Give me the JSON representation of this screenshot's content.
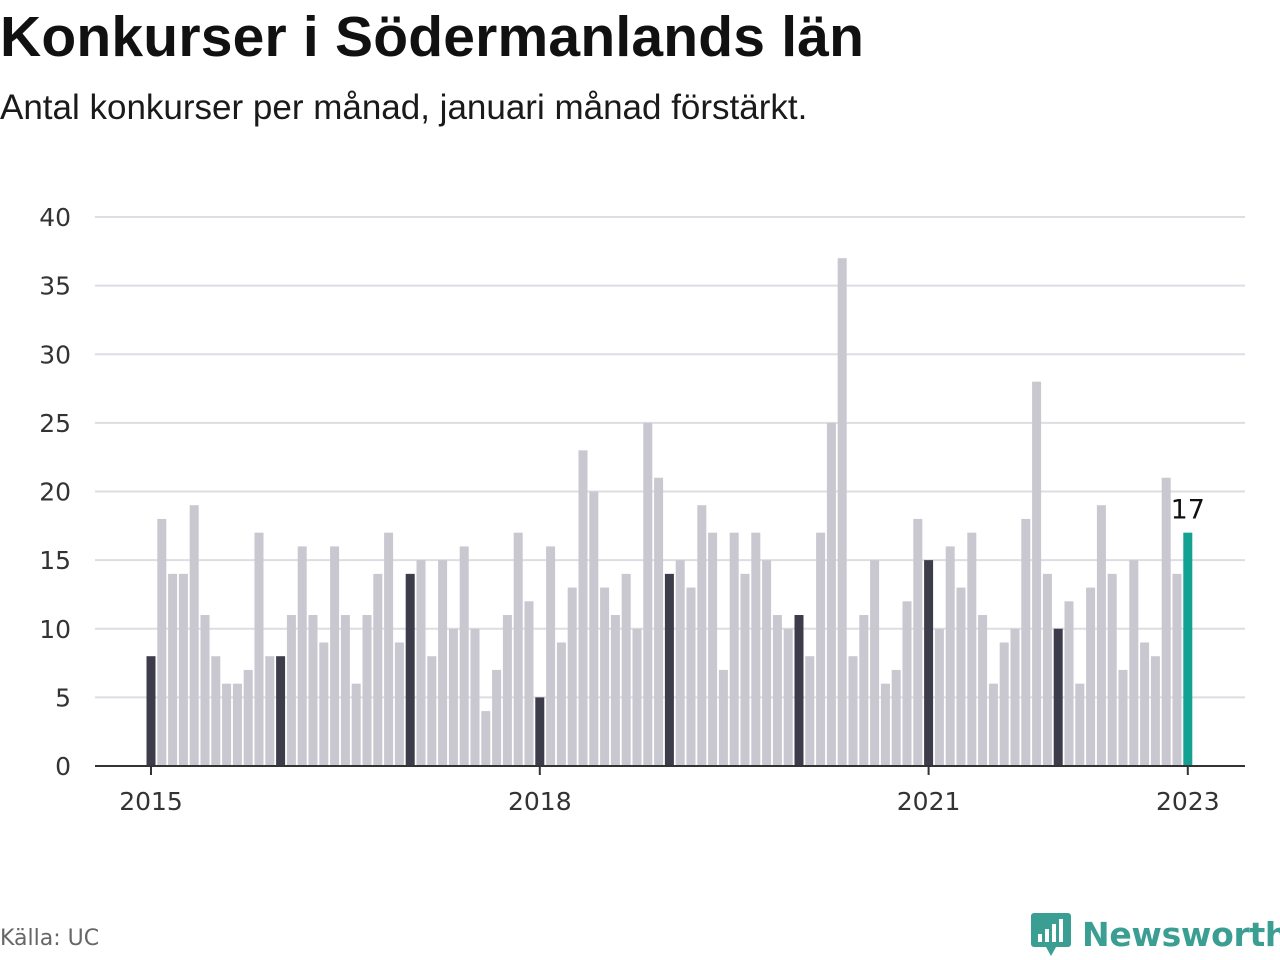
{
  "header": {
    "title": "Konkurser i Södermanlands län",
    "subtitle": "Antal konkurser per månad, januari månad förstärkt."
  },
  "footer": {
    "source": "Källa: UC",
    "logo_text": "Newsworthy",
    "logo_icon": "bar-chart-icon"
  },
  "colors": {
    "bar_default": "#c9c8d0",
    "bar_january": "#3d3c4a",
    "bar_latest": "#13a194",
    "grid": "#dedde3",
    "axis": "#333333",
    "logo": "#3a9e93"
  },
  "chart_data": {
    "type": "bar",
    "title": "Konkurser i Södermanlands län",
    "subtitle": "Antal konkurser per månad, januari månad förstärkt.",
    "xlabel": "",
    "ylabel": "",
    "ylim": [
      0,
      40
    ],
    "yticks": [
      0,
      5,
      10,
      15,
      20,
      25,
      30,
      35,
      40
    ],
    "grid": true,
    "start": "2015-01",
    "xtick_labels": [
      {
        "label": "2015",
        "index": 0
      },
      {
        "label": "2018",
        "index": 36
      },
      {
        "label": "2021",
        "index": 72
      },
      {
        "label": "2023",
        "index": 96
      }
    ],
    "values": [
      8,
      18,
      14,
      14,
      19,
      11,
      8,
      6,
      6,
      7,
      17,
      8,
      8,
      11,
      16,
      11,
      9,
      16,
      11,
      6,
      11,
      14,
      17,
      9,
      14,
      15,
      8,
      15,
      10,
      16,
      10,
      4,
      7,
      11,
      17,
      12,
      5,
      16,
      9,
      13,
      23,
      20,
      13,
      11,
      14,
      10,
      25,
      21,
      14,
      15,
      13,
      19,
      17,
      7,
      17,
      14,
      17,
      15,
      11,
      10,
      11,
      8,
      17,
      25,
      37,
      8,
      11,
      15,
      6,
      7,
      12,
      18,
      15,
      10,
      16,
      13,
      17,
      11,
      6,
      9,
      10,
      18,
      28,
      14,
      10,
      12,
      6,
      13,
      19,
      14,
      7,
      15,
      9,
      8,
      21,
      14,
      17
    ],
    "highlight": "january",
    "annotations": [
      {
        "index": 96,
        "text": "17"
      }
    ]
  }
}
